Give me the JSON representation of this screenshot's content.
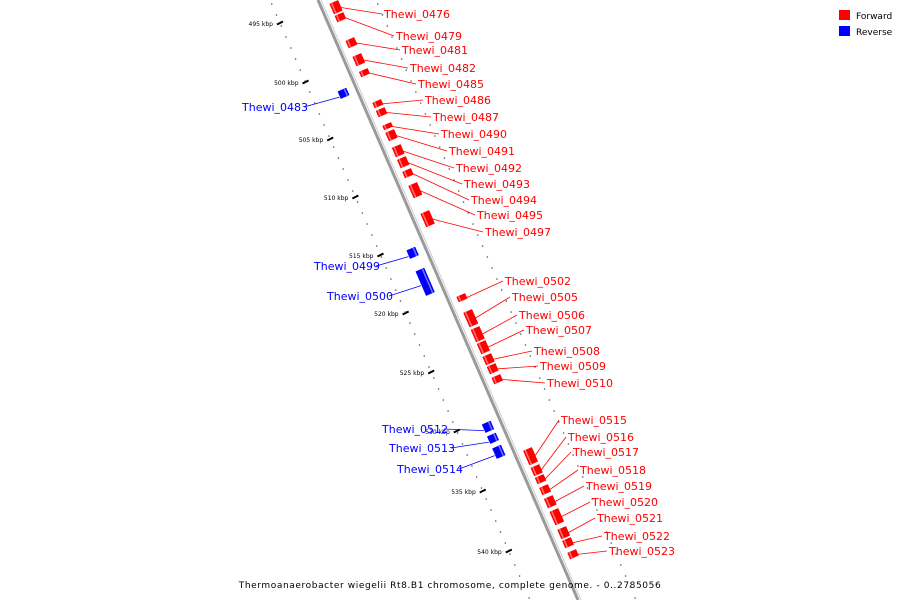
{
  "caption": "Thermoanaerobacter wiegelii Rt8.B1 chromosome, complete genome. - 0..2785056",
  "legend": [
    {
      "label": "Forward",
      "color": "#ff0000"
    },
    {
      "label": "Reverse",
      "color": "#0000ff"
    }
  ],
  "colors": {
    "forward": "#ff0000",
    "reverse": "#0000ff",
    "backbone": "#9a9a9a",
    "tick": "#000000"
  },
  "ticks": [
    {
      "label": "495 kbp"
    },
    {
      "label": "500 kbp"
    },
    {
      "label": "505 kbp"
    },
    {
      "label": "510 kbp"
    },
    {
      "label": "515 kbp"
    },
    {
      "label": "520 kbp"
    },
    {
      "label": "525 kbp"
    },
    {
      "label": "530 kbp"
    },
    {
      "label": "535 kbp"
    },
    {
      "label": "540 kbp"
    }
  ],
  "genes": [
    {
      "label": "Thewi_0476",
      "strand": "forward"
    },
    {
      "label": "Thewi_0479",
      "strand": "forward"
    },
    {
      "label": "Thewi_0481",
      "strand": "forward"
    },
    {
      "label": "Thewi_0482",
      "strand": "forward"
    },
    {
      "label": "Thewi_0485",
      "strand": "forward"
    },
    {
      "label": "Thewi_0486",
      "strand": "forward"
    },
    {
      "label": "Thewi_0487",
      "strand": "forward"
    },
    {
      "label": "Thewi_0490",
      "strand": "forward"
    },
    {
      "label": "Thewi_0491",
      "strand": "forward"
    },
    {
      "label": "Thewi_0492",
      "strand": "forward"
    },
    {
      "label": "Thewi_0493",
      "strand": "forward"
    },
    {
      "label": "Thewi_0494",
      "strand": "forward"
    },
    {
      "label": "Thewi_0495",
      "strand": "forward"
    },
    {
      "label": "Thewi_0497",
      "strand": "forward"
    },
    {
      "label": "Thewi_0502",
      "strand": "forward"
    },
    {
      "label": "Thewi_0505",
      "strand": "forward"
    },
    {
      "label": "Thewi_0506",
      "strand": "forward"
    },
    {
      "label": "Thewi_0507",
      "strand": "forward"
    },
    {
      "label": "Thewi_0508",
      "strand": "forward"
    },
    {
      "label": "Thewi_0509",
      "strand": "forward"
    },
    {
      "label": "Thewi_0510",
      "strand": "forward"
    },
    {
      "label": "Thewi_0515",
      "strand": "forward"
    },
    {
      "label": "Thewi_0516",
      "strand": "forward"
    },
    {
      "label": "Thewi_0517",
      "strand": "forward"
    },
    {
      "label": "Thewi_0518",
      "strand": "forward"
    },
    {
      "label": "Thewi_0519",
      "strand": "forward"
    },
    {
      "label": "Thewi_0520",
      "strand": "forward"
    },
    {
      "label": "Thewi_0521",
      "strand": "forward"
    },
    {
      "label": "Thewi_0522",
      "strand": "forward"
    },
    {
      "label": "Thewi_0523",
      "strand": "forward"
    },
    {
      "label": "Thewi_0483",
      "strand": "reverse"
    },
    {
      "label": "Thewi_0499",
      "strand": "reverse"
    },
    {
      "label": "Thewi_0500",
      "strand": "reverse"
    },
    {
      "label": "Thewi_0512",
      "strand": "reverse"
    },
    {
      "label": "Thewi_0513",
      "strand": "reverse"
    },
    {
      "label": "Thewi_0514",
      "strand": "reverse"
    }
  ]
}
